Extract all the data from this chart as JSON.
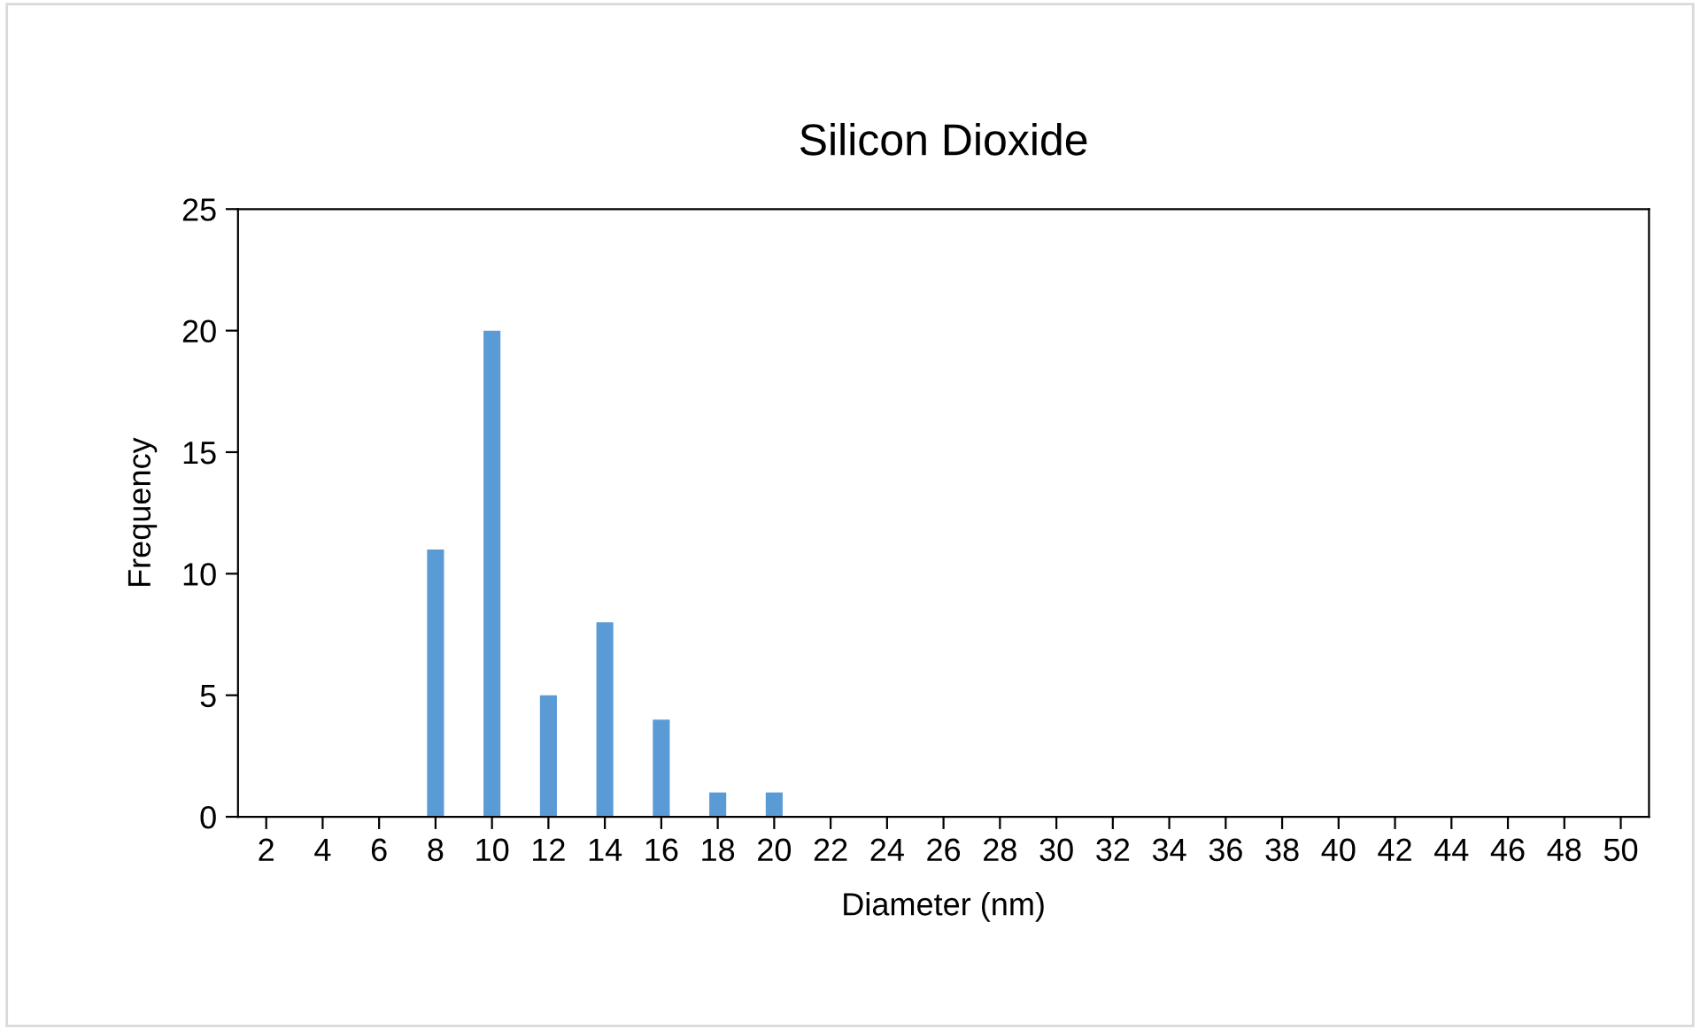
{
  "chart_data": {
    "type": "bar",
    "title": "Silicon Dioxide",
    "xlabel": "Diameter (nm)",
    "ylabel": "Frequency",
    "categories": [
      "2",
      "4",
      "6",
      "8",
      "10",
      "12",
      "14",
      "16",
      "18",
      "20",
      "22",
      "24",
      "26",
      "28",
      "30",
      "32",
      "34",
      "36",
      "38",
      "40",
      "42",
      "44",
      "46",
      "48",
      "50"
    ],
    "values": [
      0,
      0,
      0,
      11,
      20,
      5,
      8,
      4,
      1,
      1,
      0,
      0,
      0,
      0,
      0,
      0,
      0,
      0,
      0,
      0,
      0,
      0,
      0,
      0,
      0
    ],
    "color": "#5b9bd5",
    "ylim": [
      0,
      25
    ],
    "yticks": [
      0,
      5,
      10,
      15,
      20,
      25
    ],
    "grid": false,
    "legend": false
  }
}
